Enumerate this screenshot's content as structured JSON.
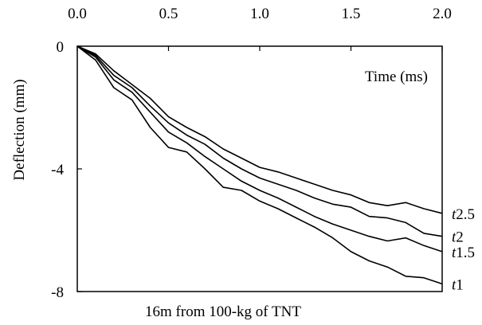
{
  "chart_data": {
    "type": "line",
    "title": "",
    "xlabel": "Time (ms)",
    "ylabel": "Deflection (mm)",
    "caption": "16m  from 100-kg of  TNT",
    "xlim": [
      0,
      2.0
    ],
    "ylim": [
      -8,
      0
    ],
    "x_ticks": [
      "0.0",
      "0.5",
      "1.0",
      "1.5",
      "2.0"
    ],
    "y_ticks": [
      "0",
      "-4",
      "-8"
    ],
    "x_axis_position": "top",
    "grid": false,
    "series": [
      {
        "name": "t2.5",
        "label_italic": "t",
        "label_rest": "2.5",
        "x": [
          0,
          0.1,
          0.2,
          0.3,
          0.4,
          0.5,
          0.6,
          0.7,
          0.8,
          0.9,
          1.0,
          1.1,
          1.2,
          1.3,
          1.4,
          1.5,
          1.6,
          1.7,
          1.8,
          1.9,
          2.0
        ],
        "y": [
          0,
          -0.25,
          -0.8,
          -1.25,
          -1.7,
          -2.3,
          -2.65,
          -2.95,
          -3.35,
          -3.65,
          -3.95,
          -4.1,
          -4.3,
          -4.5,
          -4.7,
          -4.85,
          -5.1,
          -5.2,
          -5.1,
          -5.3,
          -5.45
        ]
      },
      {
        "name": "t2",
        "label_italic": "t",
        "label_rest": "2",
        "x": [
          0,
          0.1,
          0.2,
          0.3,
          0.4,
          0.5,
          0.6,
          0.7,
          0.8,
          0.9,
          1.0,
          1.1,
          1.2,
          1.3,
          1.4,
          1.5,
          1.6,
          1.7,
          1.8,
          1.9,
          2.0
        ],
        "y": [
          0,
          -0.3,
          -0.95,
          -1.35,
          -1.95,
          -2.5,
          -2.9,
          -3.2,
          -3.65,
          -4.0,
          -4.3,
          -4.5,
          -4.7,
          -4.95,
          -5.15,
          -5.25,
          -5.55,
          -5.6,
          -5.75,
          -6.1,
          -6.2
        ]
      },
      {
        "name": "t1.5",
        "label_italic": "t",
        "label_rest": "1.5",
        "x": [
          0,
          0.1,
          0.2,
          0.3,
          0.4,
          0.5,
          0.6,
          0.7,
          0.8,
          0.9,
          1.0,
          1.1,
          1.2,
          1.3,
          1.4,
          1.5,
          1.6,
          1.7,
          1.8,
          1.9,
          2.0
        ],
        "y": [
          0,
          -0.35,
          -1.1,
          -1.5,
          -2.15,
          -2.8,
          -3.15,
          -3.6,
          -4.0,
          -4.4,
          -4.7,
          -4.95,
          -5.25,
          -5.55,
          -5.8,
          -6.0,
          -6.2,
          -6.35,
          -6.25,
          -6.5,
          -6.7
        ]
      },
      {
        "name": "t1",
        "label_italic": "t",
        "label_rest": "1",
        "x": [
          0,
          0.1,
          0.2,
          0.3,
          0.4,
          0.5,
          0.6,
          0.7,
          0.8,
          0.9,
          1.0,
          1.1,
          1.2,
          1.3,
          1.4,
          1.5,
          1.6,
          1.7,
          1.8,
          1.9,
          2.0
        ],
        "y": [
          0,
          -0.45,
          -1.35,
          -1.75,
          -2.65,
          -3.3,
          -3.45,
          -4.0,
          -4.6,
          -4.7,
          -5.05,
          -5.3,
          -5.6,
          -5.9,
          -6.25,
          -6.7,
          -7.0,
          -7.2,
          -7.5,
          -7.55,
          -7.75
        ]
      }
    ]
  }
}
